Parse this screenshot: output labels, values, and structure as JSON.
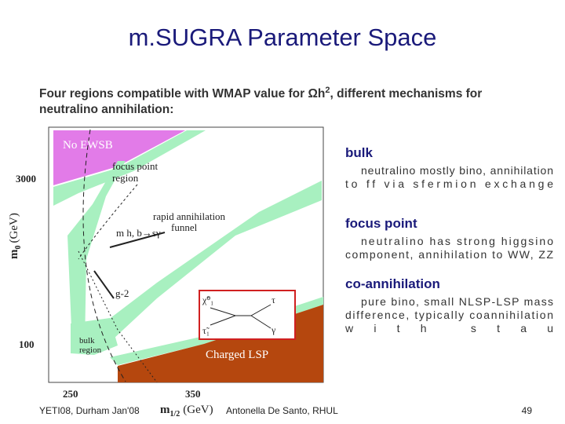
{
  "title": "m.SUGRA Parameter Space",
  "intro": {
    "before": "Four regions compatible with WMAP value for Ωh",
    "sup": "2",
    "after": ", different mechanisms for",
    "line2": "neutralino annihilation:"
  },
  "figure": {
    "y_axis": {
      "symbol": "m",
      "sub": "0",
      "unit": "(GeV)",
      "ticks": [
        "3000",
        "100"
      ]
    },
    "x_axis": {
      "symbol": "m",
      "sub": "1/2",
      "unit": "(GeV)",
      "ticks": [
        "250",
        "350"
      ]
    },
    "regions": {
      "no_ewsb": "No EWSB",
      "focus_point": [
        "focus point",
        "region"
      ],
      "funnel": [
        "rapid annihilation",
        "funnel"
      ],
      "bulk": [
        "bulk",
        "region"
      ],
      "charged_lsp": "Charged LSP"
    },
    "constraints": {
      "mh_bsg": "m h, b→sγ",
      "g2": "g-2"
    },
    "diagram": {
      "neutralino": "χ̃⁰₁",
      "stau": "τ̃₁",
      "tau": "τ",
      "photon": "γ"
    }
  },
  "sections": [
    {
      "heading": "bulk",
      "lines": [
        "neutralino mostly bino, annihilation",
        "to ff via sfermion exchange"
      ]
    },
    {
      "heading": "focus point",
      "lines": [
        "neutralino has strong higgsino",
        "component, annihilation to WW, ZZ"
      ]
    },
    {
      "heading": "co-annihilation",
      "lines": [
        "pure bino, small NLSP-LSP mass",
        "difference, typically coannihilation",
        "with stau"
      ]
    }
  ],
  "footer": {
    "left": "YETI08, Durham Jan'08",
    "center": "Antonella De Santo, RHUL",
    "page": "49"
  }
}
